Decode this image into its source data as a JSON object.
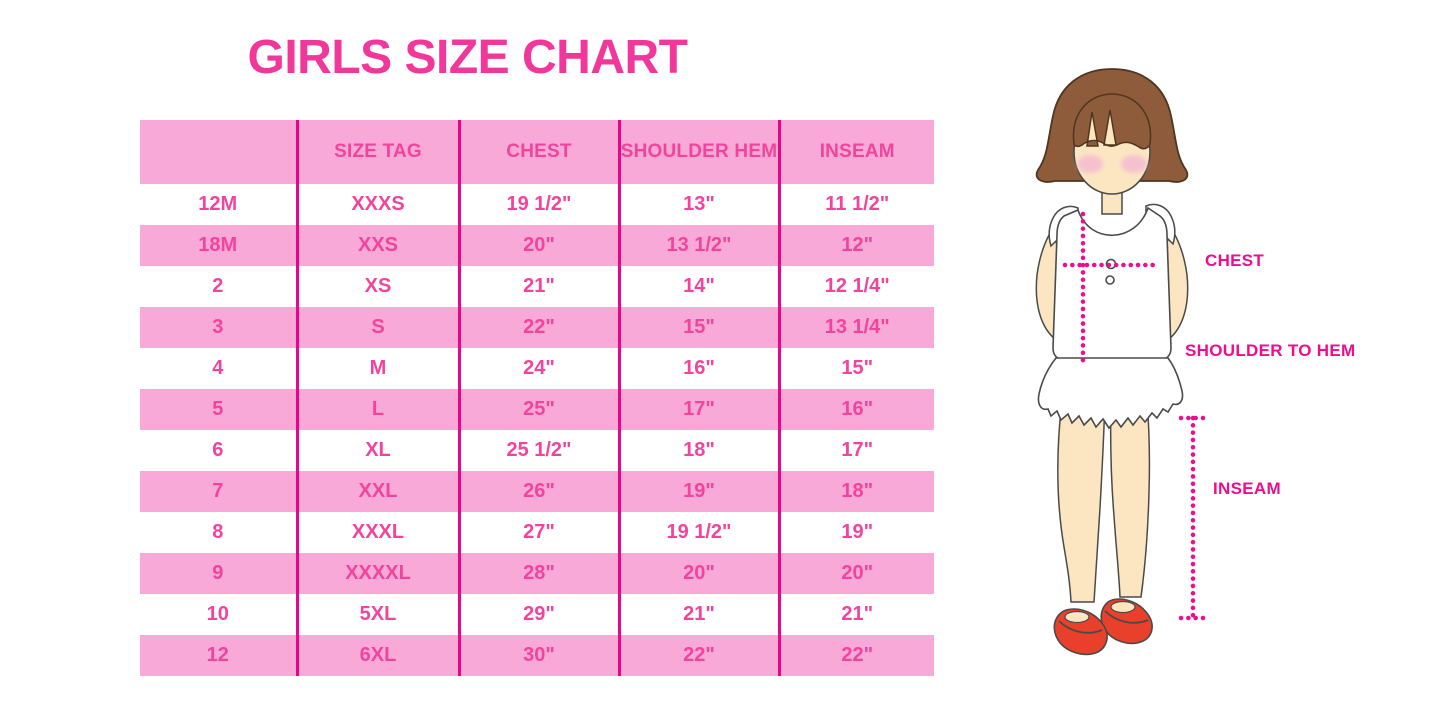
{
  "title": "GIRLS SIZE CHART",
  "table": {
    "headers": [
      "",
      "SIZE TAG",
      "CHEST",
      "SHOULDER HEM",
      "INSEAM"
    ],
    "rows": [
      [
        "12M",
        "XXXS",
        "19 1/2\"",
        "13\"",
        "11 1/2\""
      ],
      [
        "18M",
        "XXS",
        "20\"",
        "13 1/2\"",
        "12\""
      ],
      [
        "2",
        "XS",
        "21\"",
        "14\"",
        "12 1/4\""
      ],
      [
        "3",
        "S",
        "22\"",
        "15\"",
        "13 1/4\""
      ],
      [
        "4",
        "M",
        "24\"",
        "16\"",
        "15\""
      ],
      [
        "5",
        "L",
        "25\"",
        "17\"",
        "16\""
      ],
      [
        "6",
        "XL",
        "25 1/2\"",
        "18\"",
        "17\""
      ],
      [
        "7",
        "XXL",
        "26\"",
        "19\"",
        "18\""
      ],
      [
        "8",
        "XXXL",
        "27\"",
        "19 1/2\"",
        "19\""
      ],
      [
        "9",
        "XXXXL",
        "28\"",
        "20\"",
        "20\""
      ],
      [
        "10",
        "5XL",
        "29\"",
        "21\"",
        "21\""
      ],
      [
        "12",
        "6XL",
        "30\"",
        "22\"",
        "22\""
      ]
    ]
  },
  "figure": {
    "labels": {
      "chest": "CHEST",
      "shoulder_to_hem": "SHOULDER TO HEM",
      "inseam": "INSEAM"
    }
  },
  "colors": {
    "title_pink": "#F2379A",
    "table_text_pink": "#F2449C",
    "row_band_pink": "#F9A9D8",
    "column_line_magenta": "#E6078B",
    "measure_label_magenta": "#EE0D8E",
    "hair_brown": "#8E5C3B",
    "skin": "#FBE6C1",
    "blush_pink": "#F5BBD2",
    "shoe_red": "#E8402B"
  }
}
